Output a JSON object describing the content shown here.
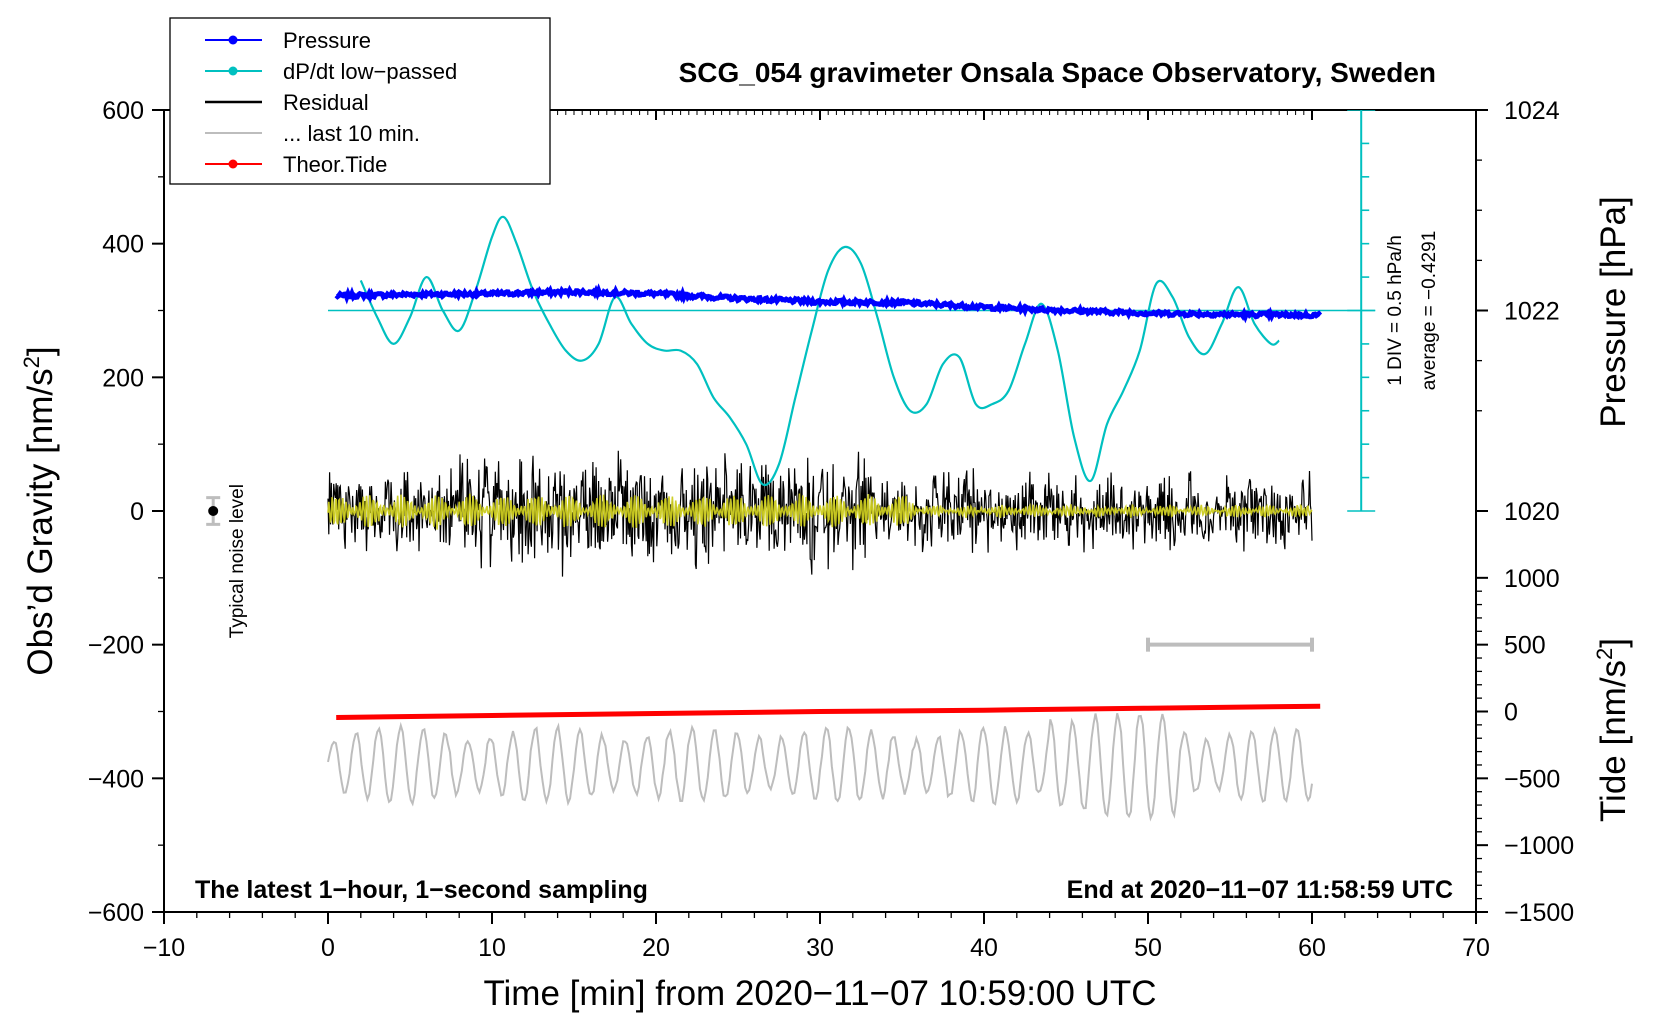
{
  "colors": {
    "pressure": "#0000ff",
    "dpdt": "#00c0c0",
    "residual": "#000000",
    "last10": "#bdbdbd",
    "tide": "#ff0000",
    "filtered": "#cccc20"
  },
  "chart_data": {
    "type": "line",
    "title": "SCG_054 gravimeter Onsala Space Observatory, Sweden",
    "xlabel": "Time [min] from 2020−11−07 10:59:00 UTC",
    "ylabel_left": "Obs’d Gravity [nm/s",
    "ylabel_left_sup": "2",
    "ylabel_left_end": "]",
    "ylabel_right_pressure": "Pressure [hPa]",
    "ylabel_right_tide": "Tide [nm/s",
    "ylabel_right_tide_sup": "2",
    "ylabel_right_tide_end": "]",
    "xlim": [
      -10,
      70
    ],
    "ylim": [
      -600,
      600
    ],
    "x_ticks": [
      "−10",
      "0",
      "10",
      "20",
      "30",
      "40",
      "50",
      "60",
      "70"
    ],
    "x_tick_values": [
      -10,
      0,
      10,
      20,
      30,
      40,
      50,
      60,
      70
    ],
    "y_ticks": [
      "600",
      "400",
      "200",
      "0",
      "−200",
      "−400",
      "−600"
    ],
    "y_tick_values": [
      600,
      400,
      200,
      0,
      -200,
      -400,
      -600
    ],
    "pressure_ticks": [
      "1024",
      "1022",
      "1020"
    ],
    "pressure_tick_values": [
      1024,
      1022,
      1020
    ],
    "pressure_axis": {
      "ref_value": 1022,
      "ref_gravity": 300,
      "gravity_per_hpa": 150
    },
    "tide_ticks": [
      "1000",
      "500",
      "0",
      "−500",
      "−1000",
      "−1500"
    ],
    "tide_tick_values": [
      1000,
      500,
      0,
      -500,
      -1000,
      -1500
    ],
    "tide_axis": {
      "ref_value": 0,
      "ref_gravity": -300,
      "gravity_per_unit": 0.2
    },
    "legend": [
      {
        "name": "Pressure",
        "key": "pressure",
        "marker": true
      },
      {
        "name": "dP/dt low−passed",
        "key": "dpdt",
        "marker": true
      },
      {
        "name": "Residual",
        "key": "residual",
        "marker": false
      },
      {
        "name": "... last 10 min.",
        "key": "last10",
        "marker": false
      },
      {
        "name": "Theor.Tide",
        "key": "tide",
        "marker": true
      }
    ],
    "annotations": {
      "bottom_left": "The latest 1−hour, 1−second sampling",
      "bottom_right": "End at 2020−11−07 11:58:59 UTC",
      "noise": "Typical noise level",
      "div": "1 DIV = 0.5 hPa/h",
      "average": "average = −0.4291"
    },
    "noise_bar": {
      "x": -7,
      "center": 0,
      "half_range": 20
    },
    "dpdt_axis": {
      "x": 63,
      "top": 600,
      "bottom": 0,
      "baseline": 300,
      "div_step": 50
    },
    "last10_range": {
      "x_start": 50,
      "x_end": 60,
      "y": -200
    },
    "series": [
      {
        "name": "Pressure",
        "key": "pressure",
        "x": [
          0.5,
          5,
          10,
          15,
          20,
          25,
          30,
          35,
          40,
          45,
          50,
          55,
          60.5
        ],
        "y": [
          322,
          324,
          325,
          328,
          325,
          318,
          313,
          312,
          305,
          300,
          296,
          294,
          293
        ]
      },
      {
        "name": "dP/dt low-passed",
        "key": "dpdt",
        "x": [
          2,
          3,
          4,
          5,
          6,
          7,
          8,
          9,
          10,
          10.7,
          11.5,
          12.5,
          13.5,
          14.5,
          15.5,
          16.5,
          17.5,
          18.5,
          19.5,
          20.5,
          21.5,
          22.5,
          23.5,
          24.5,
          25.5,
          26.5,
          27.5,
          28.5,
          29.5,
          30.5,
          31.5,
          32.5,
          33.5,
          34.5,
          35.5,
          36.5,
          37.5,
          38.5,
          39.5,
          40.5,
          41.5,
          42.5,
          43.5,
          44.5,
          45.5,
          46.5,
          47.5,
          48.5,
          49.5,
          50.5,
          51.5,
          52.5,
          53.5,
          54.5,
          55.5,
          56.5,
          57.5,
          58
        ],
        "y": [
          345,
          290,
          250,
          290,
          350,
          300,
          270,
          330,
          410,
          440,
          400,
          330,
          280,
          240,
          225,
          250,
          320,
          280,
          250,
          240,
          240,
          220,
          170,
          140,
          100,
          40,
          70,
          170,
          270,
          360,
          395,
          370,
          290,
          200,
          150,
          160,
          220,
          230,
          160,
          160,
          180,
          250,
          310,
          240,
          110,
          45,
          130,
          180,
          240,
          340,
          320,
          260,
          235,
          280,
          335,
          280,
          250,
          255
        ]
      },
      {
        "name": "Theor.Tide",
        "key": "tide",
        "x": [
          0.5,
          10,
          20,
          30,
          40,
          50,
          60.5
        ],
        "y": [
          -309,
          -306,
          -303,
          -300,
          -298,
          -295,
          -292
        ]
      }
    ]
  }
}
